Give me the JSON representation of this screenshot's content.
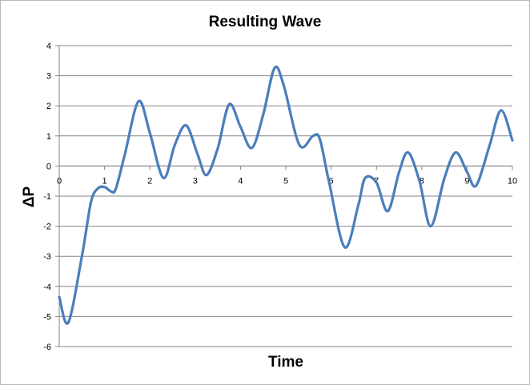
{
  "chart_data": {
    "type": "line",
    "title": "Resulting Wave",
    "xlabel": "Time",
    "ylabel": "ΔP",
    "xlim": [
      0,
      10
    ],
    "ylim": [
      -6,
      4
    ],
    "x_ticks": [
      "0",
      "1",
      "2",
      "3",
      "4",
      "5",
      "6",
      "7",
      "8",
      "9",
      "10"
    ],
    "y_ticks": [
      "4",
      "3",
      "2",
      "1",
      "0",
      "-1",
      "-2",
      "-3",
      "-4",
      "-5",
      "-6"
    ],
    "grid": "horizontal",
    "legend": "none",
    "series_color": "#4a7ebb",
    "series": [
      {
        "x": [
          0,
          0.2,
          0.5,
          0.7,
          0.85,
          1.0,
          1.15,
          1.25,
          1.45,
          1.75,
          2.0,
          2.3,
          2.55,
          2.8,
          3.05,
          3.25,
          3.5,
          3.75,
          4.0,
          4.25,
          4.5,
          4.75,
          4.95,
          5.3,
          5.6,
          5.75,
          5.95,
          6.3,
          6.6,
          6.75,
          7.0,
          7.25,
          7.5,
          7.7,
          7.95,
          8.2,
          8.5,
          8.75,
          9.0,
          9.2,
          9.5,
          9.75,
          10.0
        ],
        "y": [
          -4.35,
          -5.2,
          -3.0,
          -1.2,
          -0.75,
          -0.7,
          -0.85,
          -0.75,
          0.4,
          2.15,
          1.1,
          -0.4,
          0.7,
          1.35,
          0.4,
          -0.3,
          0.6,
          2.05,
          1.3,
          0.6,
          1.7,
          3.25,
          2.7,
          0.7,
          1.0,
          0.9,
          -0.5,
          -2.7,
          -1.3,
          -0.4,
          -0.55,
          -1.5,
          -0.2,
          0.45,
          -0.5,
          -2.0,
          -0.4,
          0.45,
          -0.2,
          -0.65,
          0.7,
          1.85,
          0.85
        ]
      }
    ]
  }
}
